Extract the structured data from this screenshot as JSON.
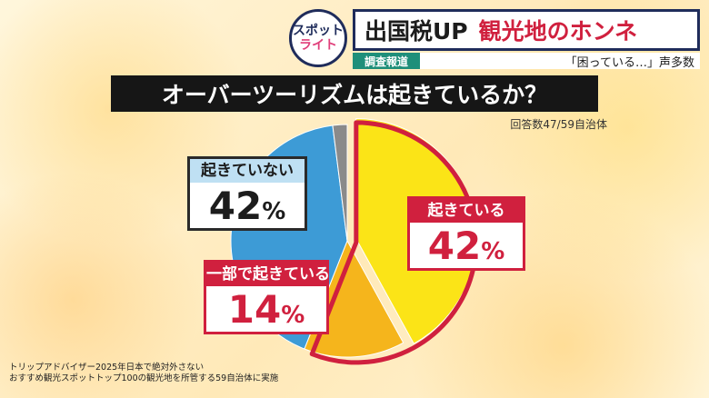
{
  "logo": {
    "line1": "スポット",
    "line2": "ライト"
  },
  "header": {
    "title_black": "出国税UP",
    "title_red": "観光地のホンネ",
    "tag": "調査報道",
    "subtitle": "「困っている…」声多数"
  },
  "question": "オーバーツーリズムは起きているか？",
  "note": "回答数47/59自治体",
  "source": {
    "line1": "トリップアドバイザー2025年日本で絶対外さない",
    "line2": "おすすめ観光スポットトップ100の観光地を所管する59自治体に実施"
  },
  "colors": {
    "occurring": "#fbe417",
    "partial": "#f5b51c",
    "not_occurring": "#3d9bd6",
    "other": "#8a8a8a",
    "highlight": "#d0203e"
  },
  "chart_data": {
    "type": "pie",
    "title": "オーバーツーリズムは起きているか？",
    "slices": [
      {
        "label": "起きている",
        "value": 42,
        "color": "#fbe417",
        "display": "42",
        "unit": "%"
      },
      {
        "label": "一部で起きている",
        "value": 14,
        "color": "#f5b51c",
        "display": "14",
        "unit": "%"
      },
      {
        "label": "起きていない",
        "value": 42,
        "color": "#3d9bd6",
        "display": "42",
        "unit": "%"
      },
      {
        "label": "",
        "value": 2,
        "color": "#8a8a8a"
      }
    ],
    "start": "12 o'clock",
    "direction": "clockwise",
    "exploded_slice": "起きている"
  }
}
